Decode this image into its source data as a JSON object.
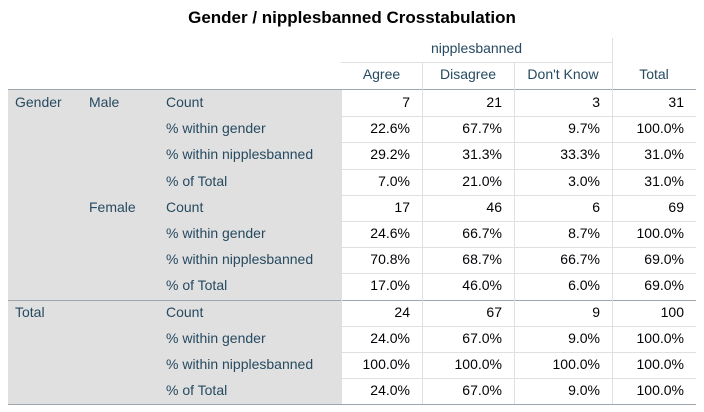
{
  "title": "Gender / nipplesbanned Crosstabulation",
  "header": {
    "group_label": "nipplesbanned",
    "columns": [
      "Agree",
      "Disagree",
      "Don't Know",
      "Total"
    ]
  },
  "groups": [
    {
      "label": "Gender",
      "subgroups": [
        {
          "label": "Male",
          "rows": [
            {
              "stat": "Count",
              "values": [
                "7",
                "21",
                "3",
                "31"
              ]
            },
            {
              "stat": "% within gender",
              "values": [
                "22.6%",
                "67.7%",
                "9.7%",
                "100.0%"
              ]
            },
            {
              "stat": "% within nipplesbanned",
              "values": [
                "29.2%",
                "31.3%",
                "33.3%",
                "31.0%"
              ]
            },
            {
              "stat": "% of Total",
              "values": [
                "7.0%",
                "21.0%",
                "3.0%",
                "31.0%"
              ]
            }
          ]
        },
        {
          "label": "Female",
          "rows": [
            {
              "stat": "Count",
              "values": [
                "17",
                "46",
                "6",
                "69"
              ]
            },
            {
              "stat": "% within gender",
              "values": [
                "24.6%",
                "66.7%",
                "8.7%",
                "100.0%"
              ]
            },
            {
              "stat": "% within nipplesbanned",
              "values": [
                "70.8%",
                "68.7%",
                "66.7%",
                "69.0%"
              ]
            },
            {
              "stat": "% of Total",
              "values": [
                "17.0%",
                "46.0%",
                "6.0%",
                "69.0%"
              ]
            }
          ]
        }
      ]
    },
    {
      "label": "Total",
      "subgroups": [
        {
          "label": "",
          "rows": [
            {
              "stat": "Count",
              "values": [
                "24",
                "67",
                "9",
                "100"
              ]
            },
            {
              "stat": "% within gender",
              "values": [
                "24.0%",
                "67.0%",
                "9.0%",
                "100.0%"
              ]
            },
            {
              "stat": "% within nipplesbanned",
              "values": [
                "100.0%",
                "100.0%",
                "100.0%",
                "100.0%"
              ]
            },
            {
              "stat": "% of Total",
              "values": [
                "24.0%",
                "67.0%",
                "9.0%",
                "100.0%"
              ]
            }
          ]
        }
      ]
    }
  ]
}
